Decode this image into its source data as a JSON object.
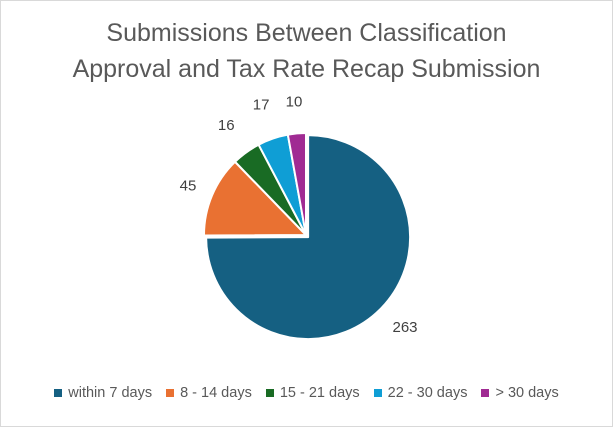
{
  "chart_data": {
    "type": "pie",
    "title_lines": [
      "Submissions Between Classification",
      "Approval and Tax Rate Recap Submission"
    ],
    "categories": [
      "within 7 days",
      "8 - 14 days",
      "15 - 21 days",
      "22 - 30 days",
      "> 30 days"
    ],
    "values": [
      263,
      45,
      16,
      17,
      10
    ],
    "value_labels": [
      "263",
      "45",
      "16",
      "17",
      "10"
    ],
    "colors": [
      "#156082",
      "#E97132",
      "#196B24",
      "#0F9ED5",
      "#A02B93"
    ],
    "exploded_slice": "within 7 days",
    "legend_position": "bottom"
  }
}
